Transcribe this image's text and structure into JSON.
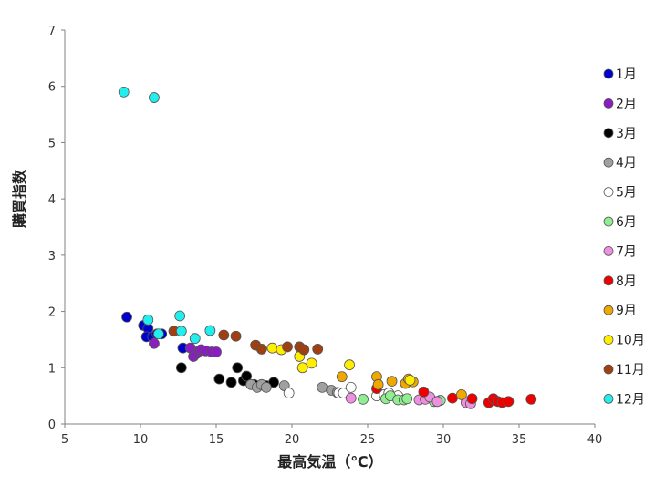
{
  "chart_data": {
    "type": "scatter",
    "title": "",
    "xlabel": "最高気温（℃）",
    "ylabel": "購買指数",
    "xlim": [
      5,
      40
    ],
    "ylim": [
      0,
      7
    ],
    "xticks": [
      5,
      10,
      15,
      20,
      25,
      30,
      35,
      40
    ],
    "yticks": [
      0,
      1,
      2,
      3,
      4,
      5,
      6,
      7
    ],
    "grid": false,
    "legend_position": "right",
    "series": [
      {
        "name": "1月",
        "color": "#0000cc",
        "points": [
          [
            9.1,
            1.9
          ],
          [
            10.2,
            1.75
          ],
          [
            10.5,
            1.7
          ],
          [
            10.4,
            1.55
          ],
          [
            10.8,
            1.55
          ],
          [
            11.1,
            1.6
          ],
          [
            11.4,
            1.6
          ],
          [
            12.8,
            1.35
          ]
        ]
      },
      {
        "name": "2月",
        "color": "#8b1cc2",
        "points": [
          [
            10.9,
            1.43
          ],
          [
            13.3,
            1.35
          ],
          [
            13.5,
            1.2
          ],
          [
            13.7,
            1.25
          ],
          [
            13.9,
            1.3
          ],
          [
            14.0,
            1.32
          ],
          [
            14.3,
            1.3
          ],
          [
            14.7,
            1.28
          ],
          [
            15.0,
            1.28
          ]
        ]
      },
      {
        "name": "3月",
        "color": "#000000",
        "points": [
          [
            12.7,
            1.0
          ],
          [
            15.2,
            0.8
          ],
          [
            16.0,
            0.74
          ],
          [
            16.4,
            1.0
          ],
          [
            16.8,
            0.77
          ],
          [
            17.0,
            0.85
          ],
          [
            17.5,
            0.7
          ],
          [
            18.3,
            0.68
          ],
          [
            18.8,
            0.74
          ]
        ]
      },
      {
        "name": "4月",
        "color": "#a0a0a0",
        "points": [
          [
            17.3,
            0.7
          ],
          [
            17.7,
            0.65
          ],
          [
            18.0,
            0.7
          ],
          [
            18.3,
            0.65
          ],
          [
            19.5,
            0.68
          ],
          [
            22.0,
            0.65
          ],
          [
            22.6,
            0.6
          ],
          [
            23.0,
            0.56
          ]
        ]
      },
      {
        "name": "5月",
        "color": "#ffffff",
        "points": [
          [
            19.8,
            0.55
          ],
          [
            23.1,
            0.55
          ],
          [
            23.4,
            0.55
          ],
          [
            23.9,
            0.65
          ],
          [
            25.6,
            0.5
          ],
          [
            26.1,
            0.52
          ],
          [
            26.4,
            0.55
          ],
          [
            27.0,
            0.5
          ]
        ]
      },
      {
        "name": "6月",
        "color": "#90ee90",
        "points": [
          [
            24.7,
            0.44
          ],
          [
            26.2,
            0.45
          ],
          [
            26.5,
            0.5
          ],
          [
            27.0,
            0.43
          ],
          [
            27.4,
            0.43
          ],
          [
            27.6,
            0.45
          ],
          [
            29.4,
            0.4
          ],
          [
            29.8,
            0.42
          ]
        ]
      },
      {
        "name": "7月",
        "color": "#ee90e0",
        "points": [
          [
            23.9,
            0.46
          ],
          [
            28.4,
            0.43
          ],
          [
            28.8,
            0.44
          ],
          [
            29.1,
            0.48
          ],
          [
            29.6,
            0.4
          ],
          [
            31.5,
            0.38
          ],
          [
            31.8,
            0.36
          ]
        ]
      },
      {
        "name": "8月",
        "color": "#ee0000",
        "points": [
          [
            25.6,
            0.63
          ],
          [
            28.7,
            0.57
          ],
          [
            30.6,
            0.46
          ],
          [
            31.9,
            0.45
          ],
          [
            33.0,
            0.38
          ],
          [
            33.3,
            0.45
          ],
          [
            33.6,
            0.4
          ],
          [
            33.9,
            0.38
          ],
          [
            34.3,
            0.4
          ],
          [
            35.8,
            0.44
          ]
        ]
      },
      {
        "name": "9月",
        "color": "#f0a800",
        "points": [
          [
            23.3,
            0.84
          ],
          [
            25.6,
            0.84
          ],
          [
            25.7,
            0.7
          ],
          [
            26.6,
            0.76
          ],
          [
            27.5,
            0.72
          ],
          [
            27.7,
            0.8
          ],
          [
            28.0,
            0.75
          ],
          [
            31.2,
            0.52
          ]
        ]
      },
      {
        "name": "10月",
        "color": "#ffee00",
        "points": [
          [
            18.7,
            1.35
          ],
          [
            19.3,
            1.32
          ],
          [
            20.5,
            1.2
          ],
          [
            20.7,
            1.0
          ],
          [
            21.3,
            1.08
          ],
          [
            23.8,
            1.05
          ],
          [
            27.8,
            0.78
          ]
        ]
      },
      {
        "name": "11月",
        "color": "#a04010",
        "points": [
          [
            12.2,
            1.65
          ],
          [
            15.5,
            1.58
          ],
          [
            16.3,
            1.56
          ],
          [
            17.6,
            1.4
          ],
          [
            18.0,
            1.33
          ],
          [
            19.7,
            1.37
          ],
          [
            20.5,
            1.37
          ],
          [
            20.8,
            1.32
          ],
          [
            21.7,
            1.33
          ]
        ]
      },
      {
        "name": "12月",
        "color": "#22eeee",
        "points": [
          [
            8.9,
            5.9
          ],
          [
            10.9,
            5.8
          ],
          [
            10.5,
            1.85
          ],
          [
            11.2,
            1.6
          ],
          [
            12.6,
            1.92
          ],
          [
            12.7,
            1.65
          ],
          [
            13.6,
            1.52
          ],
          [
            14.6,
            1.66
          ]
        ]
      }
    ]
  }
}
